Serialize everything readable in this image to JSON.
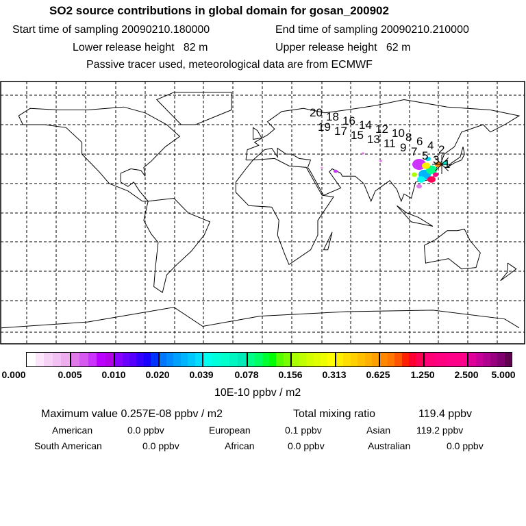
{
  "header": {
    "title": "SO2 source contributions in global domain for gosan_200902",
    "start_label": "Start time of sampling 20090210.180000",
    "end_label": "End time of sampling 20090210.210000",
    "lower_label": "Lower release height   82 m",
    "upper_label": "Upper release height   62 m",
    "note": "Passive tracer used, meteorological data are from ECMWF"
  },
  "map": {
    "trajectory_labels": [
      "20",
      "19",
      "18",
      "17",
      "16",
      "15",
      "14",
      "13",
      "12",
      "11",
      "10",
      "9",
      "8",
      "7",
      "6",
      "5",
      "4",
      "3",
      "2",
      "1"
    ],
    "receptor_icon": "star-marker-icon"
  },
  "colorbar": {
    "ticks": [
      "0.000",
      "0.005",
      "0.010",
      "0.020",
      "0.039",
      "0.078",
      "0.156",
      "0.313",
      "0.625",
      "1.250",
      "2.500",
      "5.000"
    ],
    "unit": "10E-10 ppbv / m2",
    "segment_colors": [
      [
        "#ffffff",
        "#fbe6fb",
        "#f6d2f6",
        "#f2c0f2",
        "#eeaeee"
      ],
      [
        "#e07ae8",
        "#d75af0",
        "#cc33ff",
        "#bb00ff",
        "#b400e8"
      ],
      [
        "#8800ff",
        "#6a00ff",
        "#5500ff",
        "#3300ff",
        "#1a00ff",
        "#0033ff"
      ],
      [
        "#0077ff",
        "#008cff",
        "#00a0ff",
        "#00b4ff",
        "#00c8ff",
        "#00ddff"
      ],
      [
        "#00ffee",
        "#00ffdd",
        "#00ffcc",
        "#00f5c0",
        "#00ebb8"
      ],
      [
        "#00ff88",
        "#00ff66",
        "#00ff33",
        "#00ff00",
        "#55ff00",
        "#77ff00"
      ],
      [
        "#aaff00",
        "#c0ff00",
        "#d4ff00",
        "#e0ff00",
        "#eeff00",
        "#ffff00"
      ],
      [
        "#ffee00",
        "#ffdd00",
        "#ffd000",
        "#ffc000",
        "#ffb000",
        "#ffa000"
      ],
      [
        "#ff8800",
        "#ff7700",
        "#ff5500",
        "#ff2200",
        "#ff0033",
        "#ff0055"
      ],
      [
        "#ff0077",
        "#ff0080",
        "#ff0088",
        "#ff008a"
      ],
      [
        "#dd0099",
        "#c8009a",
        "#b00090",
        "#990080",
        "#800070",
        "#600050"
      ]
    ]
  },
  "stats": {
    "max_label": "Maximum value  0.257E-08 ppbv / m2",
    "total_label": "Total mixing ratio",
    "total_value": "119.4 ppbv",
    "regions": [
      {
        "name": "American",
        "value": "0.0 ppbv"
      },
      {
        "name": "European",
        "value": "0.1 ppbv"
      },
      {
        "name": "Asian",
        "value": "119.2 ppbv"
      },
      {
        "name": "South American",
        "value": "0.0 ppbv"
      },
      {
        "name": "African",
        "value": "0.0 ppbv"
      },
      {
        "name": "Australian",
        "value": "0.0 ppbv"
      }
    ]
  }
}
